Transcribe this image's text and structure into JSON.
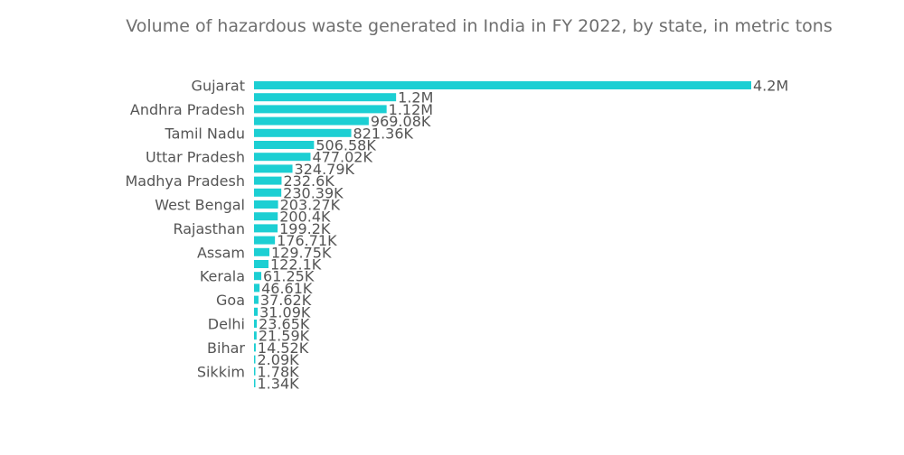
{
  "chart_data": {
    "type": "bar",
    "orientation": "horizontal",
    "title": "Volume of hazardous waste generated in India in FY 2022, by state, in metric tons",
    "xlabel": "",
    "ylabel": "",
    "xlim": [
      0,
      4200000
    ],
    "grid": false,
    "legend": "none",
    "color": "#1ccfd3",
    "categories": [
      "Gujarat",
      "",
      "Andhra Pradesh",
      "",
      "Tamil Nadu",
      "",
      "Uttar Pradesh",
      "",
      "Madhya Pradesh",
      "",
      "West Bengal",
      "",
      "Rajasthan",
      "",
      "Assam",
      "",
      "Kerala",
      "",
      "Goa",
      "",
      "Delhi",
      "",
      "Bihar",
      "",
      "Sikkim",
      ""
    ],
    "values": [
      4200000,
      1200000,
      1120000,
      969080,
      821360,
      506580,
      477020,
      324790,
      232600,
      230390,
      203270,
      200400,
      199200,
      176710,
      129750,
      122100,
      61250,
      46610,
      37620,
      31090,
      23650,
      21590,
      14520,
      2090,
      1780,
      1340
    ],
    "value_labels": [
      "4.2M",
      "1.2M",
      "1.12M",
      "969.08K",
      "821.36K",
      "506.58K",
      "477.02K",
      "324.79K",
      "232.6K",
      "230.39K",
      "203.27K",
      "200.4K",
      "199.2K",
      "176.71K",
      "129.75K",
      "122.1K",
      "61.25K",
      "46.61K",
      "37.62K",
      "31.09K",
      "23.65K",
      "21.59K",
      "14.52K",
      "2.09K",
      "1.78K",
      "1.34K"
    ]
  }
}
